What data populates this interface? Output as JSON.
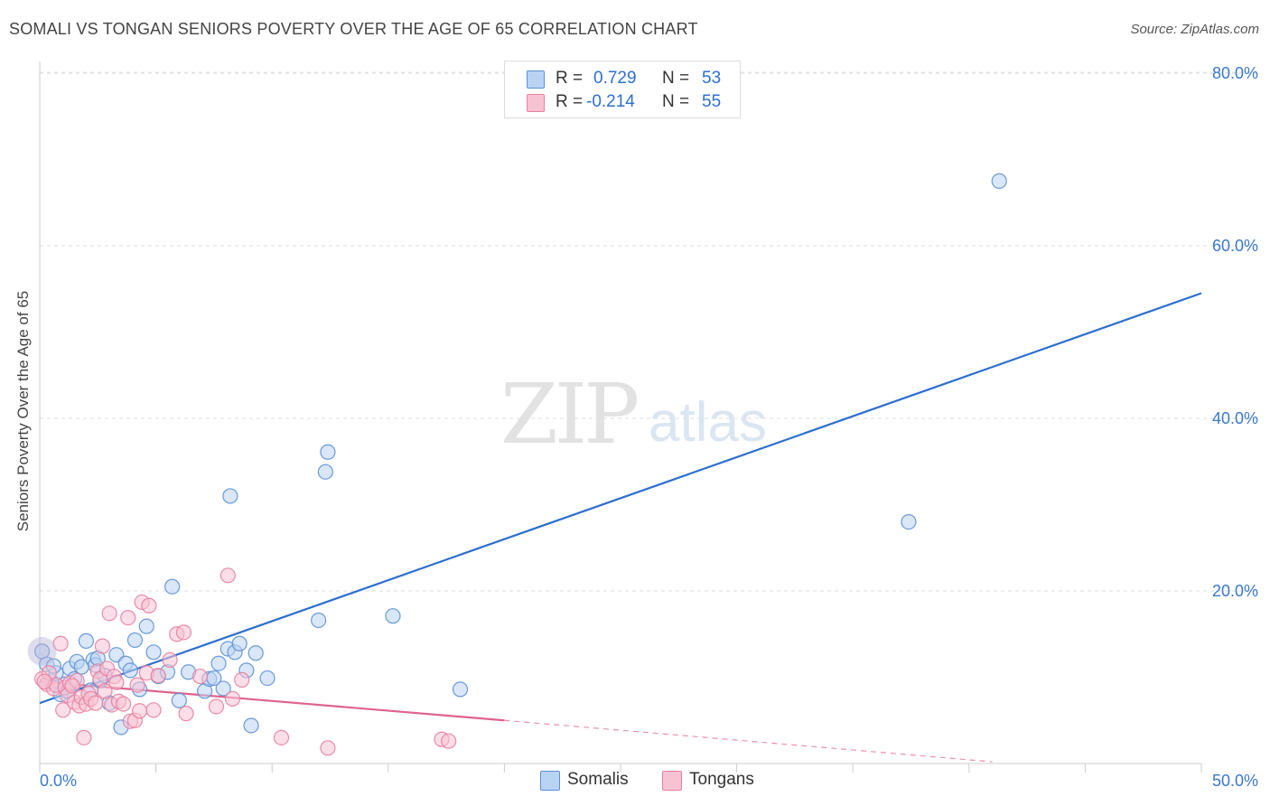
{
  "title": "SOMALI VS TONGAN SENIORS POVERTY OVER THE AGE OF 65 CORRELATION CHART",
  "source": "Source: ZipAtlas.com",
  "watermark": {
    "zip": "ZIP",
    "atlas": "atlas"
  },
  "colors": {
    "somali": "#5b8fd6",
    "somali_fill": "#b9d3f3",
    "tongan": "#e87fa0",
    "tongan_fill": "#f7c3d3",
    "somali_line": "#2d6fce",
    "tongan_line": "#e0638d",
    "tick_text": "#3a78cc"
  },
  "legend": {
    "rows": [
      {
        "r_label": "R =",
        "r_value": "0.729",
        "n_label": "N =",
        "n_value": "53"
      },
      {
        "r_label": "R =",
        "r_value": "-0.214",
        "n_label": "N =",
        "n_value": "55"
      }
    ]
  },
  "bottom_legend": [
    {
      "label": "Somalis"
    },
    {
      "label": "Tongans"
    }
  ],
  "chart_data": {
    "type": "scatter",
    "title": "SOMALI VS TONGAN SENIORS POVERTY OVER THE AGE OF 65 CORRELATION CHART",
    "xlabel": "",
    "ylabel": "Seniors Poverty Over the Age of 65",
    "xlim": [
      0,
      50
    ],
    "ylim": [
      0,
      82
    ],
    "x_tick_labels": [
      {
        "value": 0,
        "label": "0.0%"
      },
      {
        "value": 50,
        "label": "50.0%"
      }
    ],
    "y_tick_labels": [
      {
        "value": 20,
        "label": "20.0%"
      },
      {
        "value": 40,
        "label": "40.0%"
      },
      {
        "value": 60,
        "label": "60.0%"
      },
      {
        "value": 80,
        "label": "80.0%"
      }
    ],
    "series": [
      {
        "name": "Somalis",
        "r": 0.729,
        "n": 53,
        "trend": {
          "x": [
            0,
            50
          ],
          "y": [
            7.0,
            54.5
          ]
        },
        "points": [
          [
            0.1,
            13.0
          ],
          [
            0.3,
            11.5
          ],
          [
            0.5,
            9.5
          ],
          [
            0.7,
            10.5
          ],
          [
            0.9,
            8.0
          ],
          [
            1.1,
            9.2
          ],
          [
            1.3,
            11.0
          ],
          [
            1.5,
            9.8
          ],
          [
            1.6,
            11.8
          ],
          [
            1.8,
            11.2
          ],
          [
            2.0,
            14.2
          ],
          [
            2.2,
            8.5
          ],
          [
            2.3,
            12.0
          ],
          [
            2.4,
            11.4
          ],
          [
            2.6,
            9.6
          ],
          [
            2.8,
            10.2
          ],
          [
            3.0,
            7.0
          ],
          [
            3.3,
            12.6
          ],
          [
            3.5,
            4.2
          ],
          [
            3.7,
            11.6
          ],
          [
            3.9,
            10.8
          ],
          [
            4.1,
            14.3
          ],
          [
            4.3,
            8.6
          ],
          [
            4.6,
            15.9
          ],
          [
            4.9,
            12.9
          ],
          [
            5.1,
            10.1
          ],
          [
            5.5,
            10.6
          ],
          [
            5.7,
            20.5
          ],
          [
            6.0,
            7.3
          ],
          [
            6.4,
            10.6
          ],
          [
            7.1,
            8.4
          ],
          [
            7.3,
            9.8
          ],
          [
            7.5,
            9.9
          ],
          [
            7.7,
            11.6
          ],
          [
            7.9,
            8.7
          ],
          [
            8.1,
            13.3
          ],
          [
            8.2,
            31.0
          ],
          [
            8.4,
            12.9
          ],
          [
            8.6,
            13.9
          ],
          [
            8.9,
            10.8
          ],
          [
            9.3,
            12.8
          ],
          [
            9.8,
            9.9
          ],
          [
            12.0,
            16.6
          ],
          [
            12.3,
            33.8
          ],
          [
            12.4,
            36.1
          ],
          [
            15.2,
            17.1
          ],
          [
            18.1,
            8.6
          ],
          [
            41.3,
            67.5
          ],
          [
            37.4,
            28.0
          ],
          [
            9.1,
            4.4
          ],
          [
            1.2,
            8.4
          ],
          [
            2.5,
            12.2
          ],
          [
            0.6,
            11.3
          ]
        ]
      },
      {
        "name": "Tongans",
        "r": -0.214,
        "n": 55,
        "trend": {
          "x": [
            0,
            20
          ],
          "y": [
            9.5,
            5.0
          ]
        },
        "trend_dashed": {
          "x": [
            20,
            41
          ],
          "y": [
            5.0,
            0.2
          ]
        },
        "points": [
          [
            0.1,
            9.8
          ],
          [
            0.3,
            9.2
          ],
          [
            0.4,
            10.5
          ],
          [
            0.6,
            8.7
          ],
          [
            0.7,
            9.1
          ],
          [
            0.9,
            13.9
          ],
          [
            1.0,
            6.2
          ],
          [
            1.1,
            8.8
          ],
          [
            1.2,
            7.9
          ],
          [
            1.3,
            9.3
          ],
          [
            1.5,
            7.1
          ],
          [
            1.6,
            9.6
          ],
          [
            1.7,
            6.7
          ],
          [
            1.8,
            7.7
          ],
          [
            1.9,
            3.0
          ],
          [
            2.0,
            6.9
          ],
          [
            2.1,
            8.1
          ],
          [
            2.2,
            7.5
          ],
          [
            2.4,
            7.0
          ],
          [
            2.5,
            10.7
          ],
          [
            2.6,
            9.8
          ],
          [
            2.7,
            13.6
          ],
          [
            2.8,
            8.4
          ],
          [
            2.9,
            11.0
          ],
          [
            3.0,
            17.4
          ],
          [
            3.1,
            6.8
          ],
          [
            3.2,
            10.1
          ],
          [
            3.3,
            9.4
          ],
          [
            3.4,
            7.2
          ],
          [
            3.6,
            6.9
          ],
          [
            3.8,
            16.9
          ],
          [
            3.9,
            4.9
          ],
          [
            4.1,
            5.0
          ],
          [
            4.2,
            9.1
          ],
          [
            4.3,
            6.1
          ],
          [
            4.4,
            18.7
          ],
          [
            4.6,
            10.5
          ],
          [
            4.7,
            18.3
          ],
          [
            4.9,
            6.2
          ],
          [
            5.1,
            10.2
          ],
          [
            5.6,
            12.0
          ],
          [
            5.9,
            15.0
          ],
          [
            6.2,
            15.2
          ],
          [
            6.3,
            5.8
          ],
          [
            6.9,
            10.1
          ],
          [
            7.6,
            6.6
          ],
          [
            8.1,
            21.8
          ],
          [
            8.3,
            7.5
          ],
          [
            8.7,
            9.7
          ],
          [
            10.4,
            3.0
          ],
          [
            12.4,
            1.8
          ],
          [
            17.3,
            2.8
          ],
          [
            17.6,
            2.6
          ],
          [
            1.4,
            9.0
          ],
          [
            0.2,
            9.5
          ]
        ]
      }
    ]
  }
}
